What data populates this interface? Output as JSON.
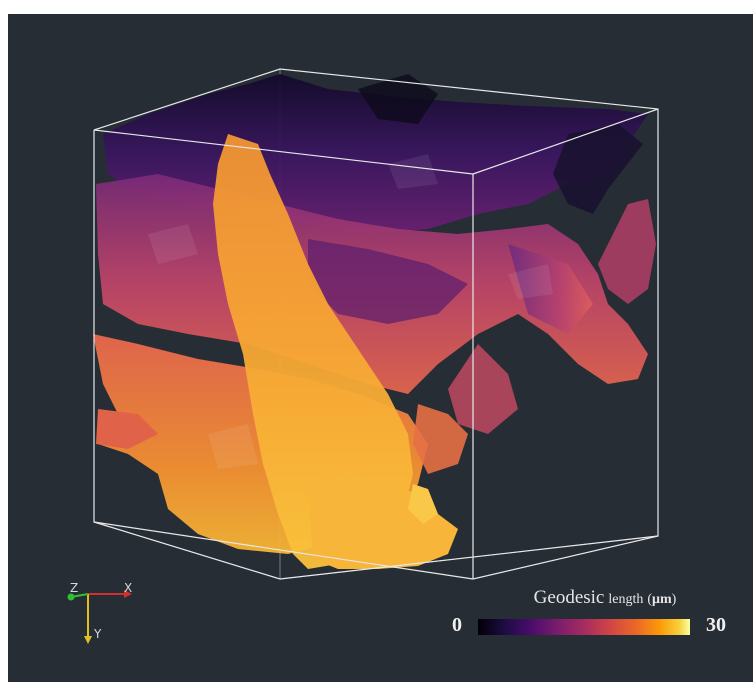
{
  "scene": {
    "colormap": "inferno",
    "background_color": "#262d35",
    "bounding_box_color": "#e8e8e8"
  },
  "axes": {
    "z_label": "Z",
    "x_label": "X",
    "y_label": "Y",
    "x_color": "#d03030",
    "y_color": "#e0c020",
    "z_color": "#30c030"
  },
  "colorbar": {
    "title_main": "Geodesic",
    "title_sub": "length",
    "unit_open": "(",
    "unit": "μm",
    "unit_close": ")",
    "min_label": "0",
    "max_label": "30"
  }
}
